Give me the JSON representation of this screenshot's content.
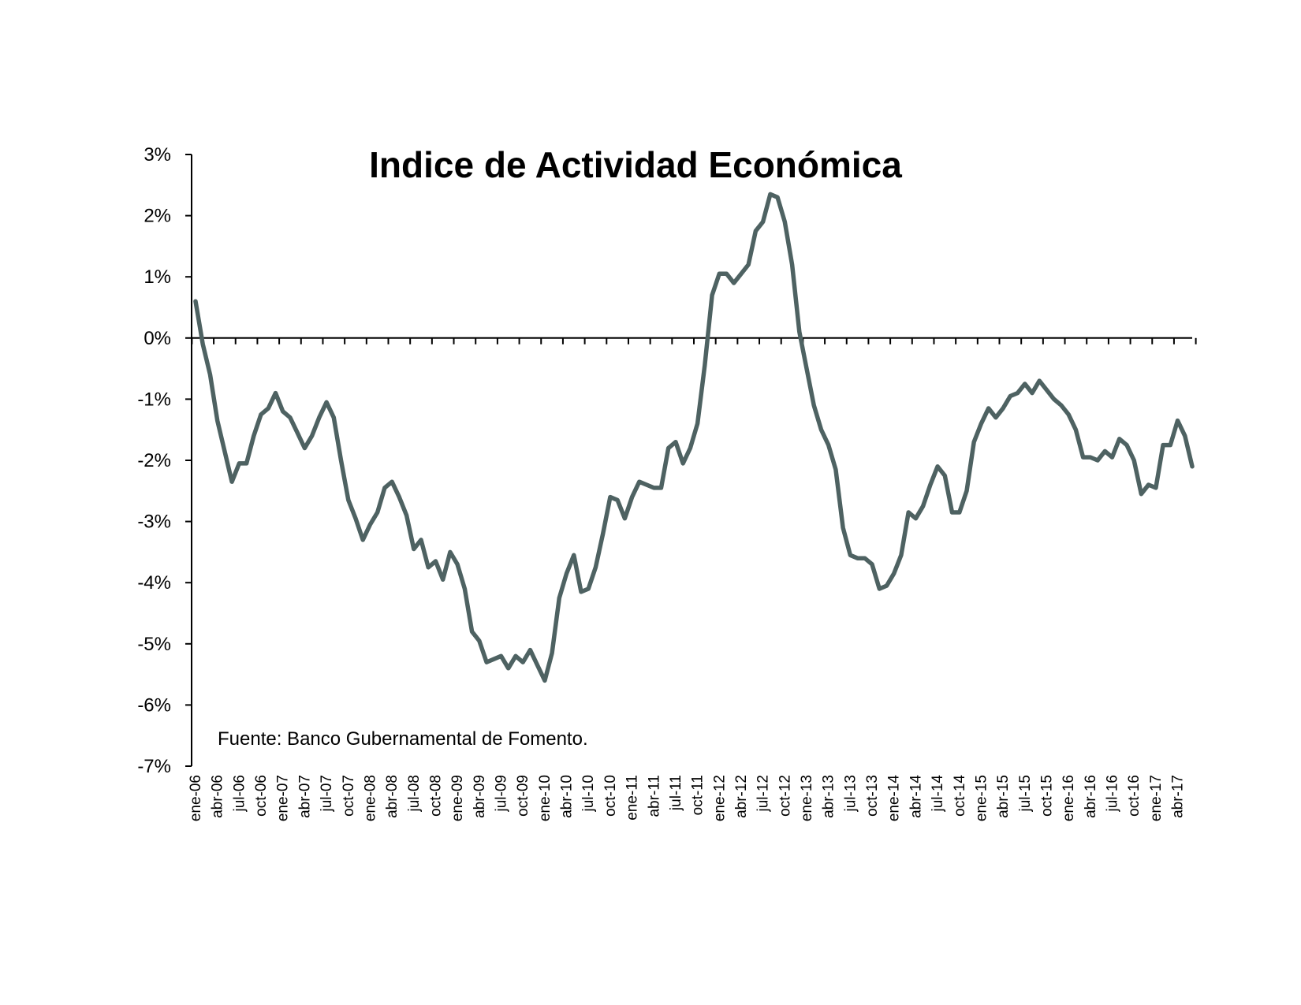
{
  "chart_data": {
    "type": "line",
    "title": "Indice de Actividad Económica",
    "source": "Fuente: Banco Gubernamental de Fomento.",
    "xlabel": "",
    "ylabel": "",
    "ylim": [
      -7,
      3
    ],
    "y_ticks": [
      "3%",
      "2%",
      "1%",
      "0%",
      "-1%",
      "-2%",
      "-3%",
      "-4%",
      "-5%",
      "-6%",
      "-7%"
    ],
    "x_tick_labels": [
      "ene-06",
      "abr-06",
      "jul-06",
      "oct-06",
      "ene-07",
      "abr-07",
      "jul-07",
      "oct-07",
      "ene-08",
      "abr-08",
      "jul-08",
      "oct-08",
      "ene-09",
      "abr-09",
      "jul-09",
      "oct-09",
      "ene-10",
      "abr-10",
      "jul-10",
      "oct-10",
      "ene-11",
      "abr-11",
      "jul-11",
      "oct-11",
      "ene-12",
      "abr-12",
      "jul-12",
      "oct-12",
      "ene-13",
      "abr-13",
      "jul-13",
      "oct-13",
      "ene-14",
      "abr-14",
      "jul-14",
      "oct-14",
      "ene-15",
      "abr-15",
      "jul-15",
      "oct-15",
      "ene-16",
      "abr-16",
      "jul-16",
      "oct-16",
      "ene-17",
      "abr-17"
    ],
    "grid": false,
    "line_color": "#4e6262",
    "series": [
      {
        "values": [
          0.6,
          -0.1,
          -0.6,
          -1.35,
          -1.85,
          -2.35,
          -2.05,
          -2.05,
          -1.6,
          -1.25,
          -1.15,
          -0.9,
          -1.2,
          -1.3,
          -1.55,
          -1.8,
          -1.6,
          -1.3,
          -1.05,
          -1.3,
          -2.0,
          -2.65,
          -2.95,
          -3.3,
          -3.05,
          -2.85,
          -2.45,
          -2.35,
          -2.6,
          -2.9,
          -3.45,
          -3.3,
          -3.75,
          -3.65,
          -3.95,
          -3.5,
          -3.7,
          -4.1,
          -4.8,
          -4.95,
          -5.3,
          -5.25,
          -5.2,
          -5.4,
          -5.2,
          -5.3,
          -5.1,
          -5.35,
          -5.6,
          -5.15,
          -4.25,
          -3.85,
          -3.55,
          -4.15,
          -4.1,
          -3.75,
          -3.2,
          -2.6,
          -2.65,
          -2.95,
          -2.6,
          -2.35,
          -2.4,
          -2.45,
          -2.45,
          -1.8,
          -1.7,
          -2.05,
          -1.8,
          -1.4,
          -0.45,
          0.7,
          1.05,
          1.05,
          0.9,
          1.05,
          1.2,
          1.75,
          1.9,
          2.35,
          2.3,
          1.9,
          1.2,
          0.1,
          -0.5,
          -1.1,
          -1.5,
          -1.75,
          -2.15,
          -3.1,
          -3.55,
          -3.6,
          -3.6,
          -3.7,
          -4.1,
          -4.05,
          -3.85,
          -3.55,
          -2.85,
          -2.95,
          -2.75,
          -2.4,
          -2.1,
          -2.25,
          -2.85,
          -2.85,
          -2.5,
          -1.7,
          -1.4,
          -1.15,
          -1.3,
          -1.15,
          -0.95,
          -0.9,
          -0.75,
          -0.9,
          -0.7,
          -0.85,
          -1.0,
          -1.1,
          -1.25,
          -1.5,
          -1.95,
          -1.95,
          -2.0,
          -1.85,
          -1.95,
          -1.65,
          -1.75,
          -2.0,
          -2.55,
          -2.4,
          -2.45,
          -1.75,
          -1.75,
          -1.35,
          -1.6,
          -2.1
        ]
      }
    ]
  }
}
